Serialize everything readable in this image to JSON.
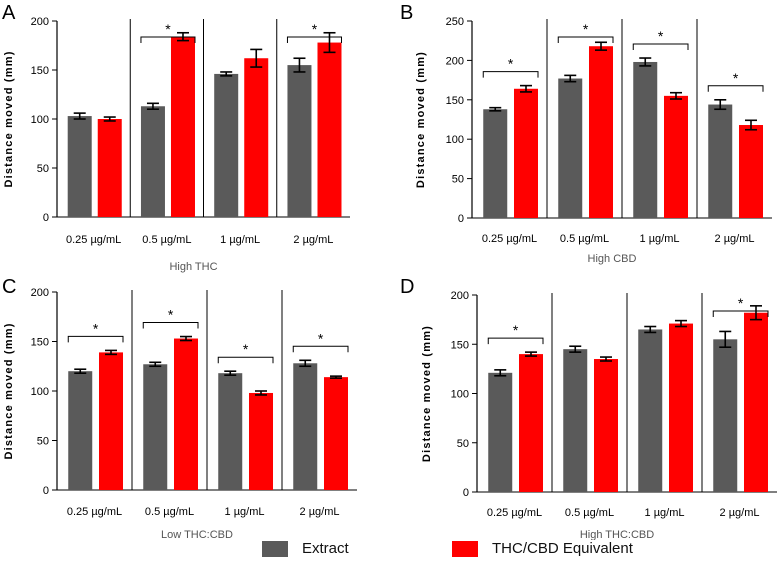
{
  "colors": {
    "extract": "#5a5a5a",
    "equivalent": "#ff0000"
  },
  "legend": {
    "extract_label": "Extract",
    "equivalent_label": "THC/CBD Equivalent"
  },
  "chart_data": [
    {
      "panel": "A",
      "type": "bar",
      "title": "",
      "xlabel": "High THC",
      "ylabel": "Distance moved (mm)",
      "ylim": [
        0,
        200
      ],
      "yticks": [
        0,
        50,
        100,
        150,
        200
      ],
      "categories": [
        "0.25 µg/mL",
        "0.5 µg/mL",
        "1  µg/mL",
        "2 µg/mL"
      ],
      "series": [
        {
          "name": "Extract",
          "values": [
            103,
            113,
            146,
            155
          ],
          "errors": [
            3,
            3,
            2,
            7
          ]
        },
        {
          "name": "THC/CBD Equivalent",
          "values": [
            100,
            184,
            162,
            178
          ],
          "errors": [
            2,
            4,
            9,
            10
          ]
        }
      ],
      "significant": [
        false,
        true,
        false,
        true
      ],
      "sig_label": "*"
    },
    {
      "panel": "B",
      "type": "bar",
      "title": "",
      "xlabel": "High CBD",
      "ylabel": "Distance moved (mm)",
      "ylim": [
        0,
        250
      ],
      "yticks": [
        0,
        50,
        100,
        150,
        200,
        250
      ],
      "categories": [
        "0.25 µg/mL",
        "0.5 µg/mL",
        "1  µg/mL",
        "2 µg/mL"
      ],
      "series": [
        {
          "name": "Extract",
          "values": [
            138,
            177,
            198,
            144
          ],
          "errors": [
            2,
            4,
            5,
            6
          ]
        },
        {
          "name": "THC/CBD Equivalent",
          "values": [
            164,
            218,
            155,
            118
          ],
          "errors": [
            4,
            5,
            4,
            6
          ]
        }
      ],
      "significant": [
        true,
        true,
        true,
        true
      ],
      "sig_label": "*"
    },
    {
      "panel": "C",
      "type": "bar",
      "title": "",
      "xlabel": "Low THC:CBD",
      "ylabel": "Distance moved (mm)",
      "ylim": [
        0,
        200
      ],
      "yticks": [
        0,
        50,
        100,
        150,
        200
      ],
      "categories": [
        "0.25 µg/mL",
        "0.5 µg/mL",
        "1  µg/mL",
        "2 µg/mL"
      ],
      "series": [
        {
          "name": "Extract",
          "values": [
            120,
            127,
            118,
            128
          ],
          "errors": [
            2,
            2,
            2,
            3
          ]
        },
        {
          "name": "THC/CBD Equivalent",
          "values": [
            139,
            153,
            98,
            114
          ],
          "errors": [
            2,
            2,
            2,
            1
          ]
        }
      ],
      "significant": [
        true,
        true,
        true,
        true
      ],
      "sig_label": "*"
    },
    {
      "panel": "D",
      "type": "bar",
      "title": "",
      "xlabel": "High THC:CBD",
      "ylabel": "Distance moved (mm)",
      "ylim": [
        0,
        200
      ],
      "yticks": [
        0,
        50,
        100,
        150,
        200
      ],
      "categories": [
        "0.25 µg/mL",
        "0.5 µg/mL",
        "1  µg/mL",
        "2 µg/mL"
      ],
      "series": [
        {
          "name": "Extract",
          "values": [
            121,
            145,
            165,
            155
          ],
          "errors": [
            3,
            3,
            3,
            8
          ]
        },
        {
          "name": "THC/CBD Equivalent",
          "values": [
            140,
            135,
            171,
            182
          ],
          "errors": [
            2,
            2,
            3,
            7
          ]
        }
      ],
      "significant": [
        true,
        false,
        false,
        true
      ],
      "sig_label": "*"
    }
  ]
}
